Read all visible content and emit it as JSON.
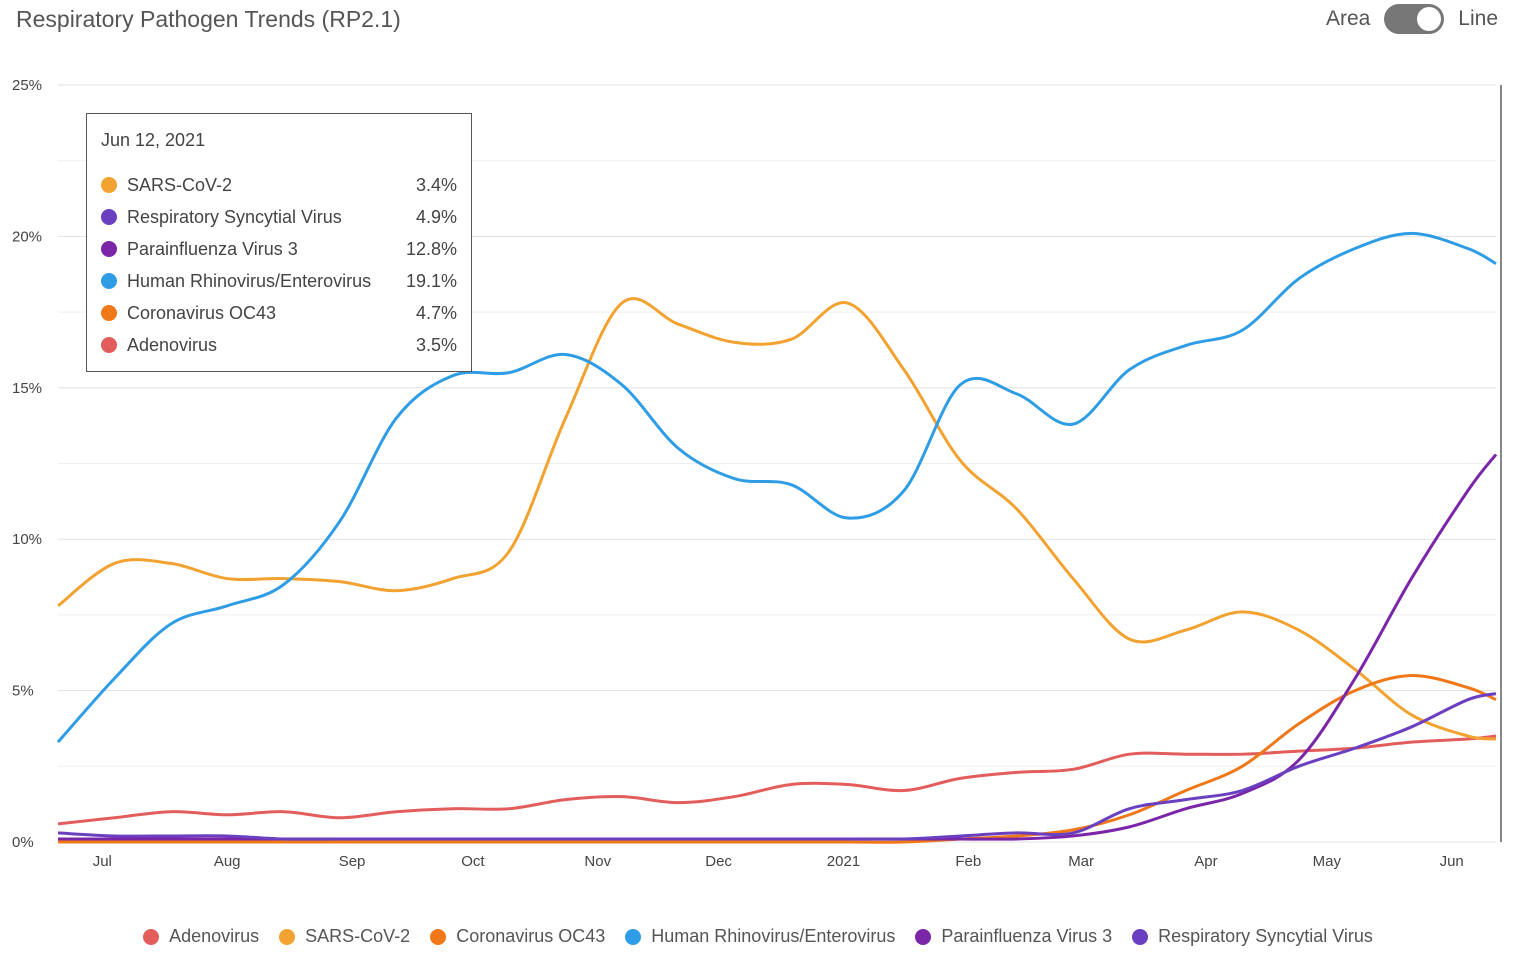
{
  "chart_data": {
    "type": "line",
    "title": "Respiratory Pathogen Trends (RP2.1)",
    "x": [
      "2020-06-20",
      "2020-07-04",
      "2020-07-18",
      "2020-08-01",
      "2020-08-15",
      "2020-08-29",
      "2020-09-12",
      "2020-09-26",
      "2020-10-10",
      "2020-10-24",
      "2020-11-07",
      "2020-11-21",
      "2020-12-05",
      "2020-12-19",
      "2021-01-02",
      "2021-01-16",
      "2021-01-30",
      "2021-02-13",
      "2021-02-27",
      "2021-03-13",
      "2021-03-27",
      "2021-04-10",
      "2021-04-24",
      "2021-05-08",
      "2021-05-22",
      "2021-06-05",
      "2021-06-12"
    ],
    "x_ticks": [
      {
        "date": "2020-07-01",
        "label": "Jul"
      },
      {
        "date": "2020-08-01",
        "label": "Aug"
      },
      {
        "date": "2020-09-01",
        "label": "Sep"
      },
      {
        "date": "2020-10-01",
        "label": "Oct"
      },
      {
        "date": "2020-11-01",
        "label": "Nov"
      },
      {
        "date": "2020-12-01",
        "label": "Dec"
      },
      {
        "date": "2021-01-01",
        "label": "2021"
      },
      {
        "date": "2021-02-01",
        "label": "Feb"
      },
      {
        "date": "2021-03-01",
        "label": "Mar"
      },
      {
        "date": "2021-04-01",
        "label": "Apr"
      },
      {
        "date": "2021-05-01",
        "label": "May"
      },
      {
        "date": "2021-06-01",
        "label": "Jun"
      }
    ],
    "y_ticks": [
      0,
      5,
      10,
      15,
      20,
      25
    ],
    "ylim": [
      0,
      25
    ],
    "y_unit": "%",
    "grid": true,
    "legend_position": "bottom",
    "series": [
      {
        "name": "Adenovirus",
        "color": "#e35d5d",
        "values": [
          0.6,
          0.8,
          1.0,
          0.9,
          1.0,
          0.8,
          1.0,
          1.1,
          1.1,
          1.4,
          1.5,
          1.3,
          1.5,
          1.9,
          1.9,
          1.7,
          2.1,
          2.3,
          2.4,
          2.9,
          2.9,
          2.9,
          3.0,
          3.1,
          3.3,
          3.4,
          3.5
        ]
      },
      {
        "name": "SARS-CoV-2",
        "color": "#f2a230",
        "values": [
          7.8,
          9.2,
          9.2,
          8.7,
          8.7,
          8.6,
          8.3,
          8.7,
          9.6,
          14.0,
          17.8,
          17.1,
          16.5,
          16.6,
          17.8,
          15.6,
          12.6,
          11.0,
          8.7,
          6.7,
          7.0,
          7.6,
          7.0,
          5.7,
          4.2,
          3.5,
          3.4
        ]
      },
      {
        "name": "Coronavirus OC43",
        "color": "#f07818",
        "values": [
          0,
          0,
          0,
          0,
          0,
          0,
          0,
          0,
          0,
          0,
          0,
          0,
          0,
          0,
          0,
          0,
          0.1,
          0.2,
          0.4,
          0.9,
          1.7,
          2.5,
          3.9,
          5.0,
          5.5,
          5.1,
          4.7
        ]
      },
      {
        "name": "Human Rhinovirus/Enterovirus",
        "color": "#2f9de6",
        "values": [
          3.3,
          5.4,
          7.2,
          7.8,
          8.5,
          10.6,
          14.0,
          15.4,
          15.5,
          16.1,
          15.1,
          13.0,
          12.0,
          11.8,
          10.7,
          11.6,
          15.1,
          14.8,
          13.8,
          15.6,
          16.4,
          16.9,
          18.6,
          19.6,
          20.1,
          19.6,
          19.1
        ]
      },
      {
        "name": "Parainfluenza Virus 3",
        "color": "#7b25a8",
        "values": [
          0.1,
          0.1,
          0.1,
          0.1,
          0.1,
          0.1,
          0.1,
          0.1,
          0.1,
          0.1,
          0.1,
          0.1,
          0.1,
          0.1,
          0.1,
          0.1,
          0.1,
          0.1,
          0.2,
          0.5,
          1.1,
          1.6,
          2.7,
          5.4,
          8.7,
          11.6,
          12.8
        ]
      },
      {
        "name": "Respiratory Syncytial Virus",
        "color": "#6a3fc0",
        "values": [
          0.3,
          0.2,
          0.2,
          0.2,
          0.1,
          0.1,
          0.1,
          0.1,
          0.1,
          0.1,
          0.1,
          0.1,
          0.1,
          0.1,
          0.1,
          0.1,
          0.2,
          0.3,
          0.3,
          1.1,
          1.4,
          1.7,
          2.5,
          3.1,
          3.8,
          4.7,
          4.9
        ]
      }
    ]
  },
  "toggle": {
    "left_label": "Area",
    "right_label": "Line",
    "selected": "Line"
  },
  "tooltip": {
    "date": "Jun 12, 2021",
    "rows": [
      {
        "name": "SARS-CoV-2",
        "value": "3.4%",
        "color": "#f2a230"
      },
      {
        "name": "Respiratory Syncytial Virus",
        "value": "4.9%",
        "color": "#6a3fc0"
      },
      {
        "name": "Parainfluenza Virus 3",
        "value": "12.8%",
        "color": "#7b25a8"
      },
      {
        "name": "Human Rhinovirus/Enterovirus",
        "value": "19.1%",
        "color": "#2f9de6"
      },
      {
        "name": "Coronavirus OC43",
        "value": "4.7%",
        "color": "#f07818"
      },
      {
        "name": "Adenovirus",
        "value": "3.5%",
        "color": "#e35d5d"
      }
    ]
  }
}
